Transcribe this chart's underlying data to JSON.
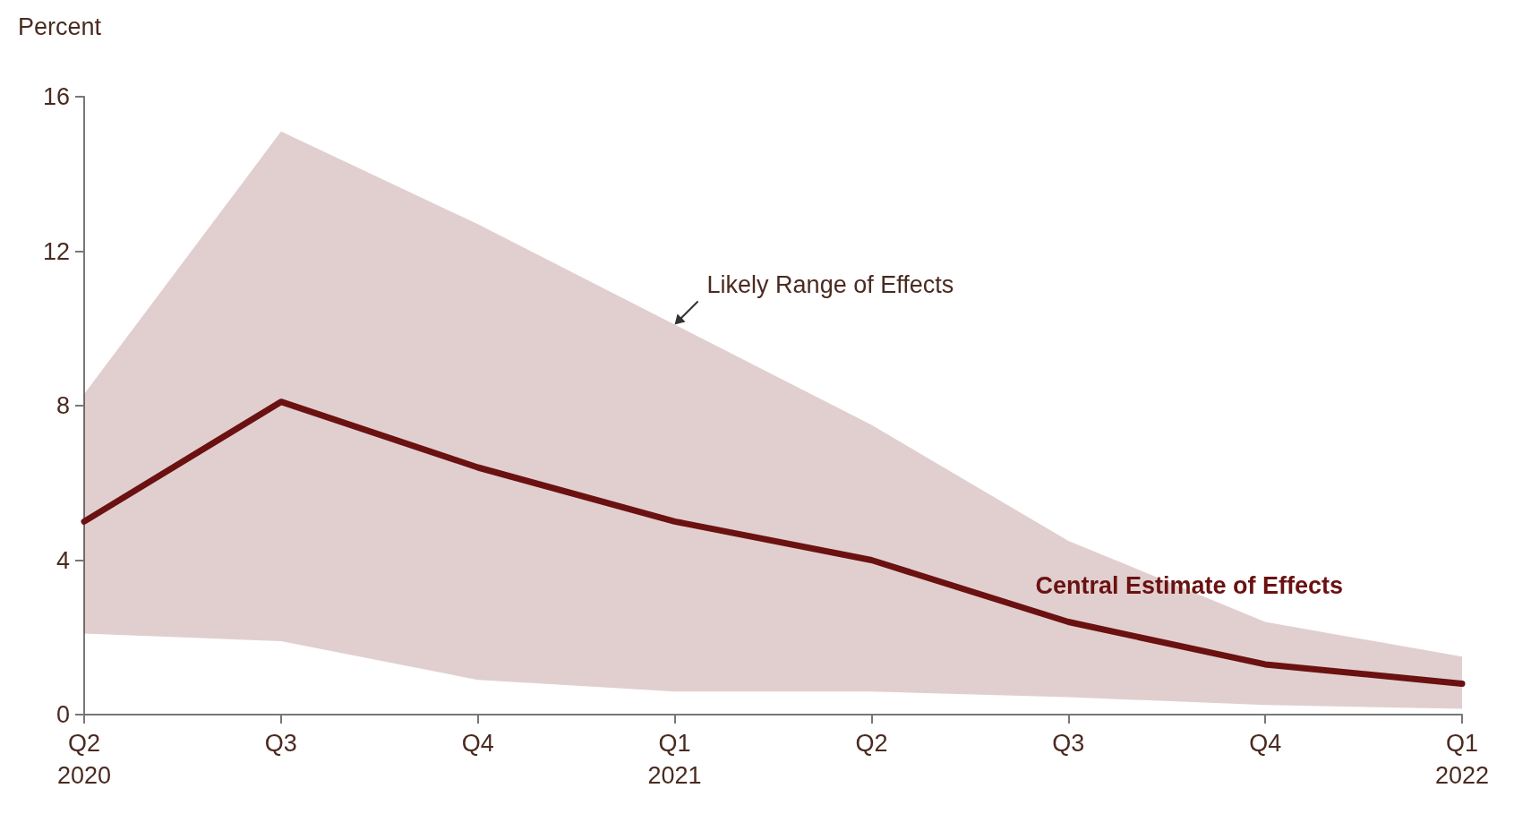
{
  "chart_data": {
    "type": "line",
    "ylabel": "Percent",
    "categories": [
      "Q2\n2020",
      "Q3",
      "Q4",
      "Q1\n2021",
      "Q2",
      "Q3",
      "Q4",
      "Q1\n2022"
    ],
    "series": [
      {
        "name": "Central Estimate of Effects",
        "color": "#6b1111",
        "values": [
          5.0,
          8.1,
          6.4,
          5.0,
          4.0,
          2.4,
          1.3,
          0.8
        ],
        "lower": [
          2.1,
          1.9,
          0.9,
          0.6,
          0.6,
          0.45,
          0.25,
          0.15
        ],
        "upper": [
          8.3,
          15.1,
          12.7,
          10.1,
          7.5,
          4.5,
          2.4,
          1.5
        ]
      }
    ],
    "annotations": [
      {
        "text": "Likely Range of Effects",
        "x": "Q1\n2021",
        "y": 10.1
      }
    ],
    "ylim": [
      0,
      16
    ],
    "yticks": [
      0,
      4,
      8,
      12,
      16
    ],
    "grid": false,
    "legend": false,
    "marker": "none",
    "line_style": "solid"
  }
}
